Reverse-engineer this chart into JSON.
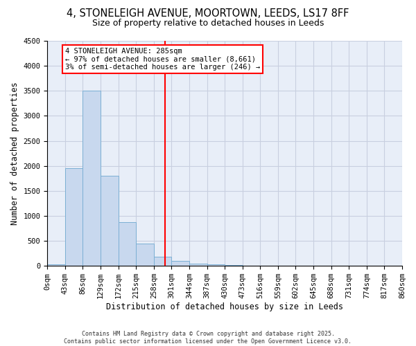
{
  "title_line1": "4, STONELEIGH AVENUE, MOORTOWN, LEEDS, LS17 8FF",
  "title_line2": "Size of property relative to detached houses in Leeds",
  "xlabel": "Distribution of detached houses by size in Leeds",
  "ylabel": "Number of detached properties",
  "bin_edges": [
    0,
    43,
    86,
    129,
    172,
    215,
    258,
    301,
    344,
    387,
    430,
    473,
    516,
    559,
    602,
    645,
    688,
    731,
    774,
    817,
    860
  ],
  "bar_heights": [
    30,
    1950,
    3500,
    1800,
    870,
    450,
    180,
    100,
    50,
    30,
    10,
    5,
    2,
    1,
    0,
    0,
    0,
    0,
    0,
    0
  ],
  "bar_color": "#c8d8ee",
  "bar_edgecolor": "#7bafd4",
  "vline_x": 285,
  "vline_color": "red",
  "ylim": [
    0,
    4500
  ],
  "yticks": [
    0,
    500,
    1000,
    1500,
    2000,
    2500,
    3000,
    3500,
    4000,
    4500
  ],
  "annotation_title": "4 STONELEIGH AVENUE: 285sqm",
  "annotation_line1": "← 97% of detached houses are smaller (8,661)",
  "annotation_line2": "3% of semi-detached houses are larger (246) →",
  "annotation_box_color": "white",
  "annotation_box_edgecolor": "red",
  "footer_line1": "Contains HM Land Registry data © Crown copyright and database right 2025.",
  "footer_line2": "Contains public sector information licensed under the Open Government Licence v3.0.",
  "bg_color": "#e8eef8",
  "grid_color": "#c8cfe0",
  "title_fontsize": 10.5,
  "subtitle_fontsize": 9,
  "axis_label_fontsize": 8.5,
  "tick_fontsize": 7.5
}
